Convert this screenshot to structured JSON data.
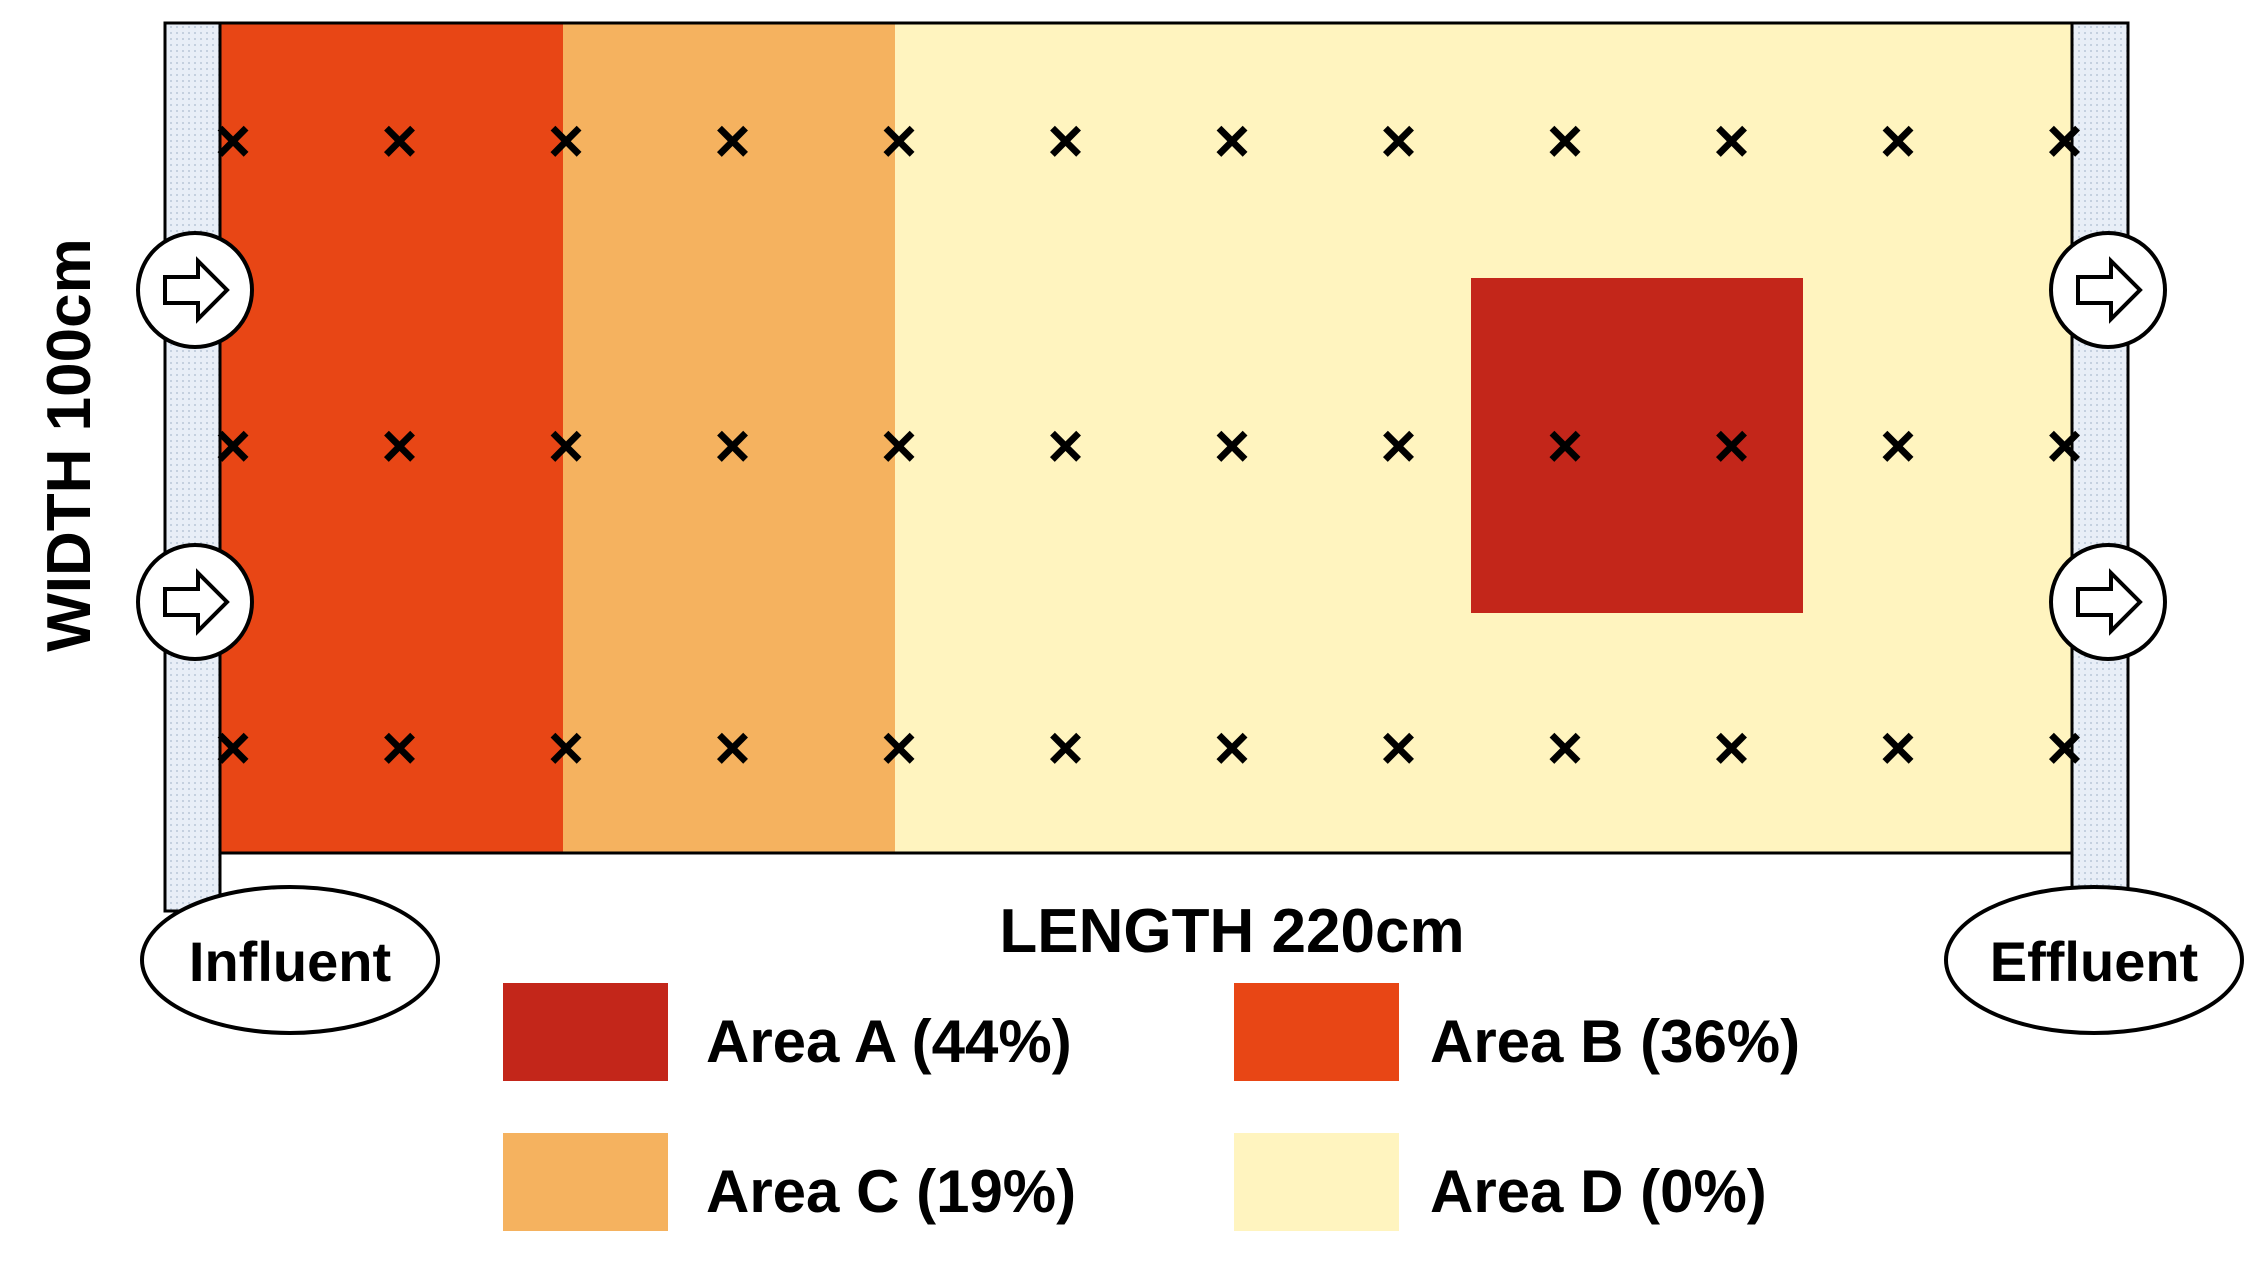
{
  "labels": {
    "width": "WIDTH 100cm",
    "length": "LENGTH 220cm",
    "influent": "Influent",
    "effluent": "Effluent"
  },
  "colors": {
    "area_a": "#c3261a",
    "area_b": "#e84615",
    "area_c": "#f5b25f",
    "area_d": "#fff4bf",
    "wall": "#e8eef7",
    "outline": "#000000"
  },
  "legend": [
    {
      "key": "area_a",
      "label": "Area A (44%)"
    },
    {
      "key": "area_b",
      "label": "Area B (36%)"
    },
    {
      "key": "area_c",
      "label": "Area C (19%)"
    },
    {
      "key": "area_d",
      "label": "Area D (0%)"
    }
  ],
  "grid": {
    "columns": 12,
    "rows": 3,
    "marker": "×"
  },
  "icons": {
    "inlet": "right-arrow-icon",
    "outlet": "right-arrow-icon"
  }
}
